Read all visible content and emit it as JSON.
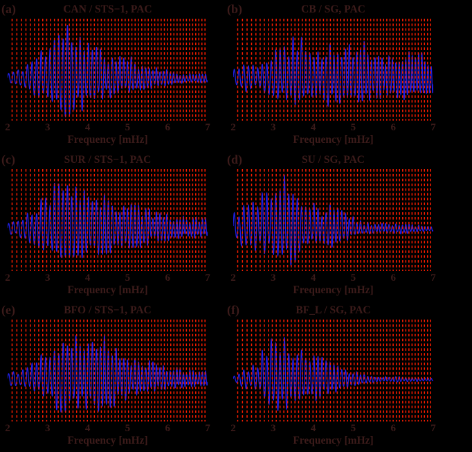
{
  "figure": {
    "background": "#000000",
    "text_color": "#3c1b1a",
    "trace_color": "#2020e8",
    "mode_line_color": "#ff1e00",
    "xlabel": "Frequency [mHz]",
    "x_ticks": [
      2,
      3,
      4,
      5,
      6,
      7
    ],
    "x_range_mhz": [
      2,
      7
    ],
    "mode_lines_mhz": [
      2.112,
      2.231,
      2.346,
      2.458,
      2.567,
      2.673,
      2.777,
      2.878,
      2.977,
      3.075,
      3.171,
      3.265,
      3.359,
      3.451,
      3.543,
      3.634,
      3.725,
      3.815,
      3.905,
      3.994,
      4.082,
      4.169,
      4.256,
      4.343,
      4.429,
      4.515,
      4.601,
      4.686,
      4.771,
      4.855,
      4.939,
      5.022,
      5.106,
      5.188,
      5.271,
      5.353,
      5.435,
      5.516,
      5.597,
      5.678,
      5.759,
      5.839,
      5.919,
      5.998,
      6.078,
      6.157,
      6.236,
      6.314,
      6.392,
      6.47,
      6.548,
      6.626,
      6.703,
      6.78,
      6.857,
      6.934
    ],
    "mode_line_style": "vertical red dashed lines at normal-mode frequencies"
  },
  "chart_data": [
    {
      "type": "line",
      "panel": "a",
      "label": "(a)",
      "title": "CAN / STS−1, PAC",
      "station": "CAN",
      "instrument": "STS−1",
      "event": "PAC",
      "xlabel": "Frequency [mHz]",
      "x_range_mhz": [
        2,
        7
      ],
      "envelope_x_start": 2.0,
      "envelope_x_step": 0.25,
      "envelope_rel_amplitude": [
        0.12,
        0.15,
        0.3,
        0.5,
        0.68,
        0.92,
        1.0,
        0.85,
        0.7,
        0.56,
        0.5,
        0.45,
        0.4,
        0.32,
        0.27,
        0.22,
        0.16,
        0.12,
        0.1,
        0.09,
        0.1
      ],
      "seed": 11
    },
    {
      "type": "line",
      "panel": "b",
      "label": "(b)",
      "title": "CB / SG, PAC",
      "station": "CB",
      "instrument": "SG",
      "event": "PAC",
      "xlabel": "Frequency [mHz]",
      "x_range_mhz": [
        2,
        7
      ],
      "envelope_x_start": 2.0,
      "envelope_x_step": 0.25,
      "envelope_rel_amplitude": [
        0.18,
        0.35,
        0.26,
        0.45,
        0.52,
        0.62,
        0.88,
        0.75,
        0.65,
        0.7,
        0.75,
        0.6,
        0.62,
        0.68,
        0.55,
        0.5,
        0.48,
        0.52,
        0.46,
        0.44,
        0.42
      ],
      "seed": 22
    },
    {
      "type": "line",
      "panel": "c",
      "label": "(c)",
      "title": "SUR / STS−1, PAC",
      "station": "SUR",
      "instrument": "STS−1",
      "event": "PAC",
      "xlabel": "Frequency [mHz]",
      "x_range_mhz": [
        2,
        7
      ],
      "envelope_x_start": 2.0,
      "envelope_x_step": 0.25,
      "envelope_rel_amplitude": [
        0.12,
        0.18,
        0.3,
        0.45,
        0.72,
        0.9,
        0.8,
        0.75,
        0.7,
        0.65,
        0.6,
        0.55,
        0.5,
        0.45,
        0.38,
        0.32,
        0.27,
        0.24,
        0.22,
        0.2,
        0.18
      ],
      "seed": 33
    },
    {
      "type": "line",
      "panel": "d",
      "label": "(d)",
      "title": "SU / SG, PAC",
      "station": "SU",
      "instrument": "SG",
      "event": "PAC",
      "xlabel": "Frequency [mHz]",
      "x_range_mhz": [
        2,
        7
      ],
      "envelope_x_start": 2.0,
      "envelope_x_step": 0.25,
      "envelope_rel_amplitude": [
        0.28,
        0.48,
        0.58,
        0.62,
        0.75,
        0.95,
        0.85,
        0.55,
        0.48,
        0.42,
        0.45,
        0.35,
        0.22,
        0.13,
        0.1,
        0.1,
        0.11,
        0.12,
        0.08,
        0.06,
        0.05
      ],
      "seed": 44
    },
    {
      "type": "line",
      "panel": "e",
      "label": "(e)",
      "title": "BFO / STS−1, PAC",
      "station": "BFO",
      "instrument": "STS−1",
      "event": "PAC",
      "xlabel": "Frequency [mHz]",
      "x_range_mhz": [
        2,
        7
      ],
      "envelope_x_start": 2.0,
      "envelope_x_step": 0.25,
      "envelope_rel_amplitude": [
        0.14,
        0.17,
        0.27,
        0.45,
        0.62,
        0.8,
        0.95,
        0.85,
        0.72,
        0.76,
        0.8,
        0.58,
        0.47,
        0.42,
        0.37,
        0.3,
        0.24,
        0.21,
        0.19,
        0.17,
        0.16
      ],
      "seed": 55
    },
    {
      "type": "line",
      "panel": "f",
      "label": "(f)",
      "title": "BF_L / SG, PAC",
      "station": "BF_L",
      "instrument": "SG",
      "event": "PAC",
      "xlabel": "Frequency [mHz]",
      "x_range_mhz": [
        2,
        7
      ],
      "envelope_x_start": 2.0,
      "envelope_x_step": 0.25,
      "envelope_rel_amplitude": [
        0.1,
        0.2,
        0.32,
        0.52,
        0.72,
        0.85,
        0.7,
        0.62,
        0.52,
        0.42,
        0.35,
        0.26,
        0.16,
        0.1,
        0.07,
        0.06,
        0.06,
        0.05,
        0.05,
        0.04,
        0.04
      ],
      "seed": 66
    }
  ]
}
